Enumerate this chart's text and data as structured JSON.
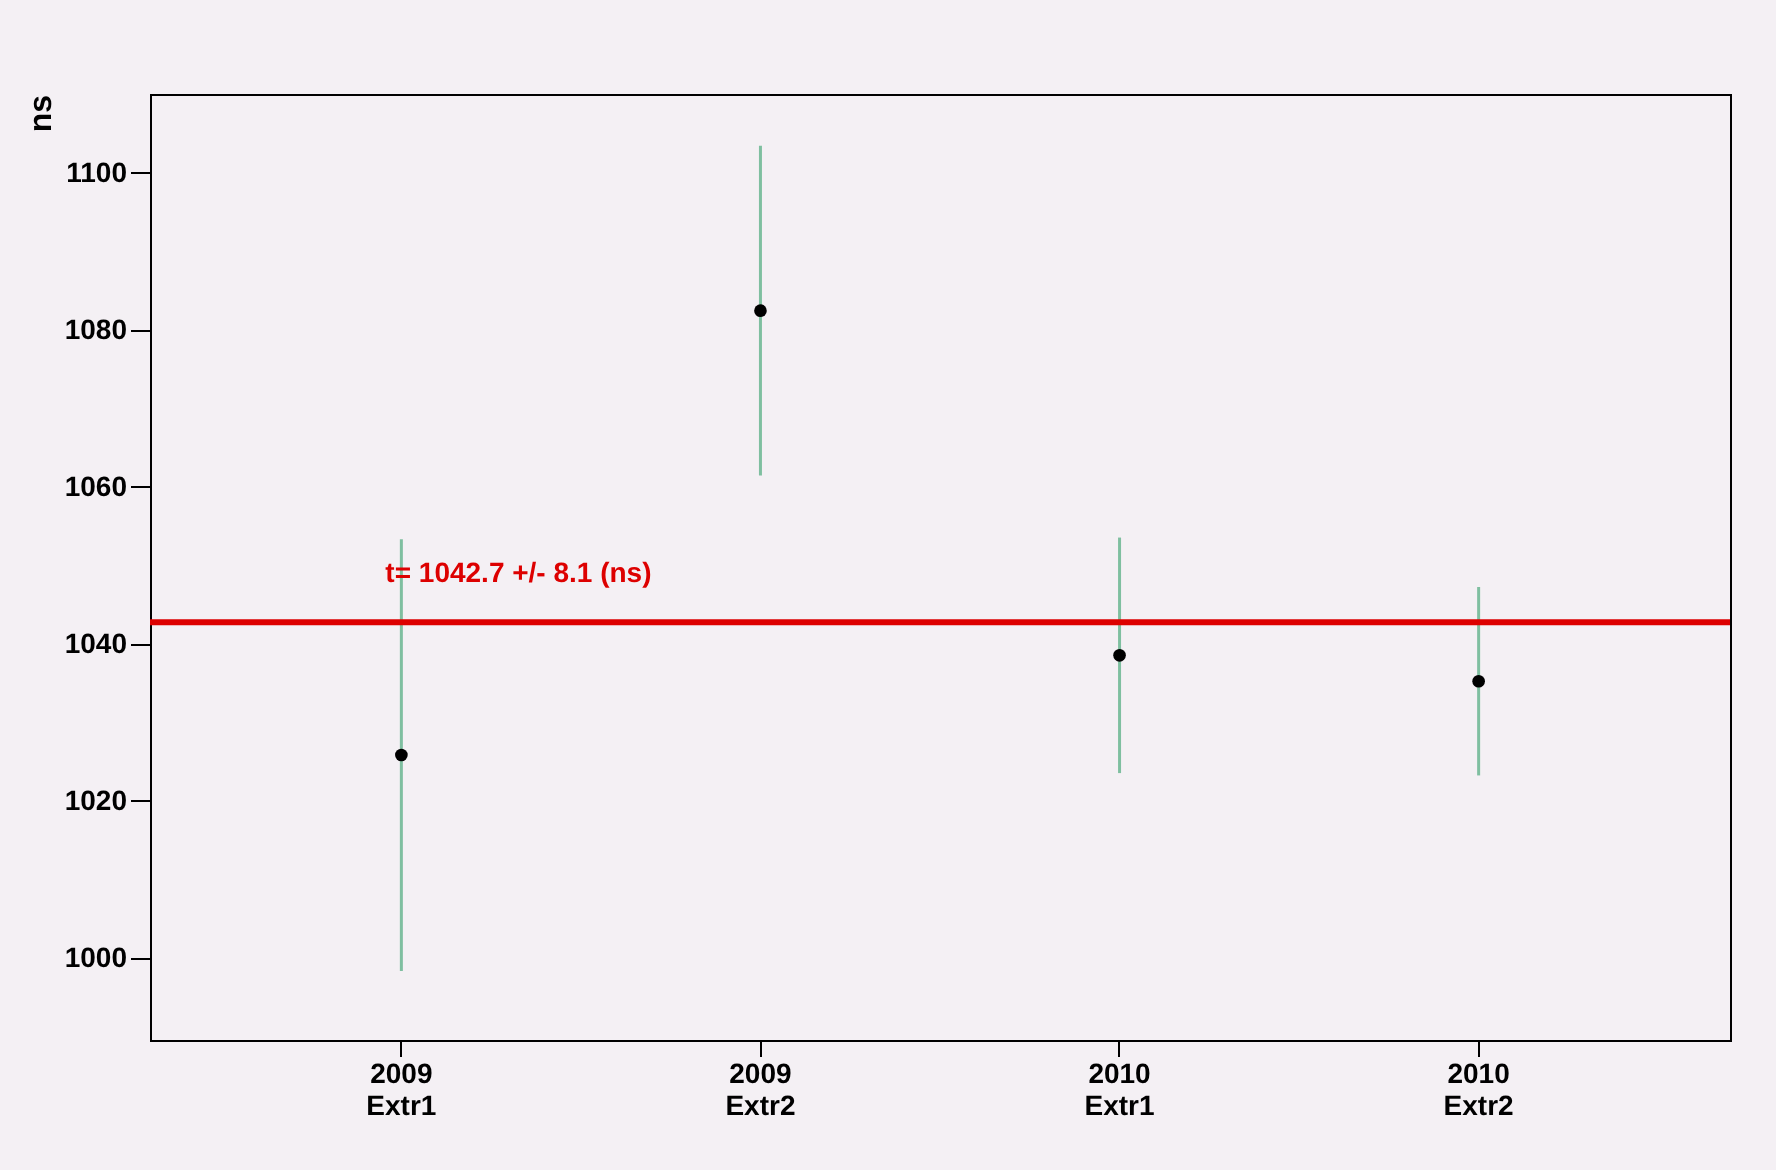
{
  "chart_data": {
    "type": "scatter",
    "ylabel": "ns",
    "categories": [
      "2009\nExtr1",
      "2009\nExtr2",
      "2010\nExtr1",
      "2010\nExtr2"
    ],
    "series": [
      {
        "color": "#000000",
        "values": [
          1025.8,
          1082.4,
          1038.5,
          1035.2
        ],
        "errors": [
          27.5,
          21,
          15,
          12
        ]
      }
    ],
    "ylim": [
      989.5,
      1110
    ],
    "yticks": [
      1000,
      1020,
      1040,
      1060,
      1080,
      1100
    ],
    "grid": false,
    "marker": "circle",
    "ref_lines": [
      {
        "axis": "y",
        "value": 1042.7,
        "label": "t= 1042.7 +/- 8.1 (ns)",
        "color": "#dd0000"
      }
    ]
  }
}
